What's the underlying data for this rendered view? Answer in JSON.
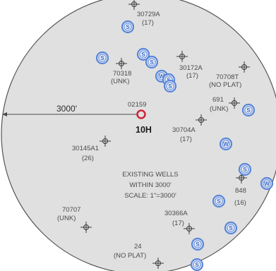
{
  "map": {
    "colors": {
      "background": "#ffffff",
      "circle_fill": "#e0e0e0",
      "circle_stroke": "#555555",
      "symbol_blue": "#5a86d8",
      "subject_well": "#d0243c"
    },
    "radius_label": "3000'",
    "subject_well": {
      "id": "02159",
      "name": "10H"
    },
    "legend": {
      "line1": "EXISTING WELLS",
      "line2": "WITHIN 3000'",
      "line3": "SCALE: 1\"=3000'"
    },
    "wells": [
      {
        "id": "30729A",
        "note": "(17)"
      },
      {
        "id": "70318",
        "note": "(UNK)"
      },
      {
        "id": "30172A",
        "note": "(17)"
      },
      {
        "id": "70708T",
        "note": "(NO PLAT)"
      },
      {
        "id": "691",
        "note": "(UNK)"
      },
      {
        "id": "30704A",
        "note": "(17)"
      },
      {
        "id": "30145A1",
        "note": "(26)"
      },
      {
        "id": "848",
        "note": "(16)"
      },
      {
        "id": "70707",
        "note": "(UNK)"
      },
      {
        "id": "30366A",
        "note": "(17)"
      },
      {
        "id": "24",
        "note": "(NO PLAT)"
      }
    ],
    "symbols": [
      "S",
      "S",
      "S",
      "S",
      "W",
      "S",
      "S",
      "S",
      "W",
      "S",
      "S",
      "W",
      "S",
      "S",
      "S"
    ]
  }
}
